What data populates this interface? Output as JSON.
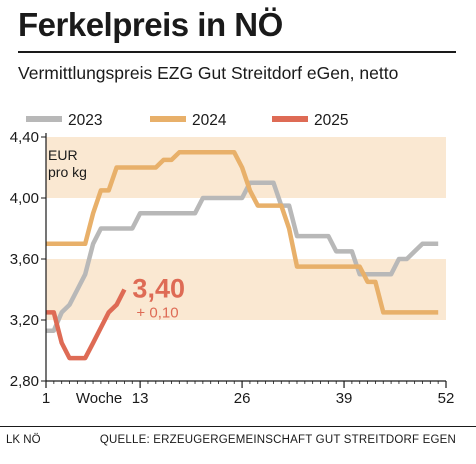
{
  "header": {
    "title": "Ferkelpreis in NÖ",
    "subtitle": "Vermittlungspreis EZG Gut Streitdorf eGen, netto"
  },
  "footer": {
    "left": "LK NÖ",
    "right": "QUELLE: ERZEUGERGEMEINSCHAFT GUT STREITDORF EGEN"
  },
  "colors": {
    "band": "#fae8d2",
    "s2023": "#b8b8b8",
    "s2024": "#e8b06a",
    "s2025": "#de6b55",
    "annotation": "#de6b55"
  },
  "chart_data": {
    "type": "line",
    "title": "Ferkelpreis in NÖ",
    "subtitle": "Vermittlungspreis EZG Gut Streitdorf eGen, netto",
    "unit_label_line1": "EUR",
    "unit_label_line2": "pro kg",
    "xlabel": "Woche",
    "x_ticks": [
      1,
      13,
      26,
      39,
      52
    ],
    "x_tick_labels": [
      "1",
      "13",
      "26",
      "39",
      "52"
    ],
    "xlim": [
      1,
      52
    ],
    "y_ticks": [
      2.8,
      3.2,
      3.6,
      4.0,
      4.4
    ],
    "y_tick_labels": [
      "2,80",
      "3,20",
      "3,60",
      "4,00",
      "4,40"
    ],
    "ylim": [
      2.8,
      4.4
    ],
    "bands": [
      [
        3.2,
        3.6
      ],
      [
        4.0,
        4.4
      ]
    ],
    "legend_position": "top",
    "series": [
      {
        "name": "2023",
        "color_key": "s2023",
        "points": [
          [
            1,
            3.13
          ],
          [
            2,
            3.13
          ],
          [
            3,
            3.25
          ],
          [
            4,
            3.3
          ],
          [
            5,
            3.4
          ],
          [
            6,
            3.5
          ],
          [
            7,
            3.7
          ],
          [
            8,
            3.8
          ],
          [
            9,
            3.8
          ],
          [
            10,
            3.8
          ],
          [
            11,
            3.8
          ],
          [
            12,
            3.8
          ],
          [
            13,
            3.9
          ],
          [
            14,
            3.9
          ],
          [
            15,
            3.9
          ],
          [
            16,
            3.9
          ],
          [
            17,
            3.9
          ],
          [
            18,
            3.9
          ],
          [
            19,
            3.9
          ],
          [
            20,
            3.9
          ],
          [
            21,
            4.0
          ],
          [
            22,
            4.0
          ],
          [
            23,
            4.0
          ],
          [
            24,
            4.0
          ],
          [
            25,
            4.0
          ],
          [
            26,
            4.0
          ],
          [
            27,
            4.1
          ],
          [
            28,
            4.1
          ],
          [
            29,
            4.1
          ],
          [
            30,
            4.1
          ],
          [
            31,
            3.95
          ],
          [
            32,
            3.95
          ],
          [
            33,
            3.75
          ],
          [
            34,
            3.75
          ],
          [
            35,
            3.75
          ],
          [
            36,
            3.75
          ],
          [
            37,
            3.75
          ],
          [
            38,
            3.65
          ],
          [
            39,
            3.65
          ],
          [
            40,
            3.65
          ],
          [
            41,
            3.5
          ],
          [
            42,
            3.5
          ],
          [
            43,
            3.5
          ],
          [
            44,
            3.5
          ],
          [
            45,
            3.5
          ],
          [
            46,
            3.6
          ],
          [
            47,
            3.6
          ],
          [
            48,
            3.65
          ],
          [
            49,
            3.7
          ],
          [
            50,
            3.7
          ],
          [
            51,
            3.7
          ]
        ]
      },
      {
        "name": "2024",
        "color_key": "s2024",
        "points": [
          [
            1,
            3.7
          ],
          [
            2,
            3.7
          ],
          [
            3,
            3.7
          ],
          [
            4,
            3.7
          ],
          [
            5,
            3.7
          ],
          [
            6,
            3.7
          ],
          [
            7,
            3.9
          ],
          [
            8,
            4.05
          ],
          [
            9,
            4.05
          ],
          [
            10,
            4.2
          ],
          [
            11,
            4.2
          ],
          [
            12,
            4.2
          ],
          [
            13,
            4.2
          ],
          [
            14,
            4.2
          ],
          [
            15,
            4.2
          ],
          [
            16,
            4.25
          ],
          [
            17,
            4.25
          ],
          [
            18,
            4.3
          ],
          [
            19,
            4.3
          ],
          [
            20,
            4.3
          ],
          [
            21,
            4.3
          ],
          [
            22,
            4.3
          ],
          [
            23,
            4.3
          ],
          [
            24,
            4.3
          ],
          [
            25,
            4.3
          ],
          [
            26,
            4.2
          ],
          [
            27,
            4.05
          ],
          [
            28,
            3.95
          ],
          [
            29,
            3.95
          ],
          [
            30,
            3.95
          ],
          [
            31,
            3.95
          ],
          [
            32,
            3.8
          ],
          [
            33,
            3.55
          ],
          [
            34,
            3.55
          ],
          [
            35,
            3.55
          ],
          [
            36,
            3.55
          ],
          [
            37,
            3.55
          ],
          [
            38,
            3.55
          ],
          [
            39,
            3.55
          ],
          [
            40,
            3.55
          ],
          [
            41,
            3.55
          ],
          [
            42,
            3.45
          ],
          [
            43,
            3.45
          ],
          [
            44,
            3.25
          ],
          [
            45,
            3.25
          ],
          [
            46,
            3.25
          ],
          [
            47,
            3.25
          ],
          [
            48,
            3.25
          ],
          [
            49,
            3.25
          ],
          [
            50,
            3.25
          ],
          [
            51,
            3.25
          ]
        ]
      },
      {
        "name": "2025",
        "color_key": "s2025",
        "points": [
          [
            1,
            3.25
          ],
          [
            2,
            3.25
          ],
          [
            3,
            3.05
          ],
          [
            4,
            2.95
          ],
          [
            5,
            2.95
          ],
          [
            6,
            2.95
          ],
          [
            7,
            3.05
          ],
          [
            8,
            3.15
          ],
          [
            9,
            3.25
          ],
          [
            10,
            3.3
          ],
          [
            11,
            3.4
          ]
        ]
      }
    ],
    "annotations": [
      {
        "value_text": "3,40",
        "change_text": "+ 0,10",
        "x": 11,
        "y": 3.4
      }
    ]
  }
}
